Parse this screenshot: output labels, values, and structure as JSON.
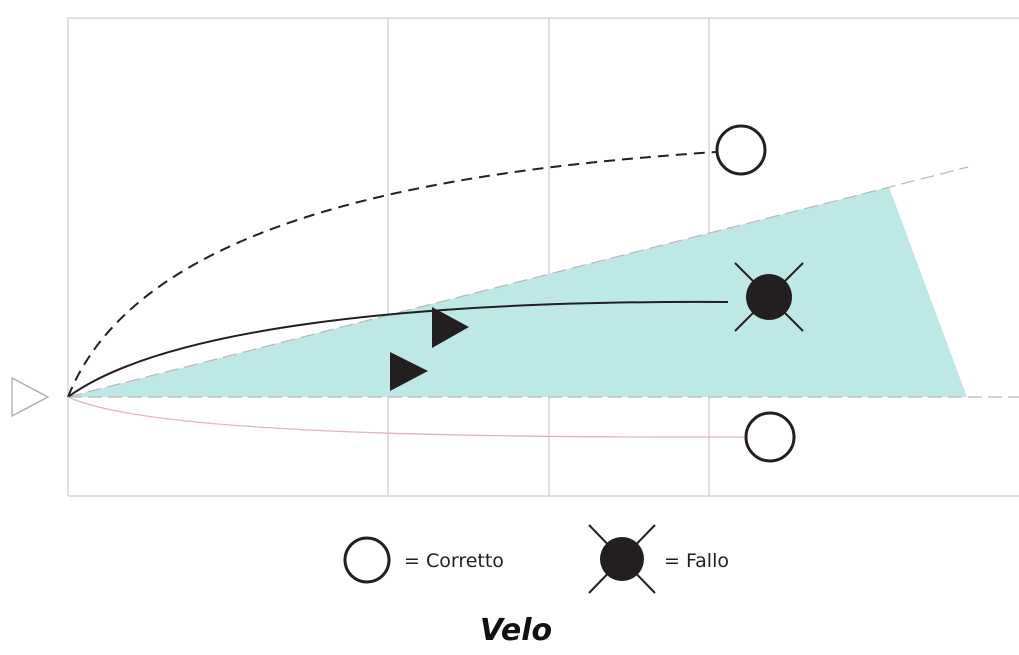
{
  "legend": {
    "correct_label": "= Corretto",
    "foul_label": "= Fallo"
  },
  "caption": "Velo",
  "colors": {
    "screen_fill": "#bde8e6",
    "grid": "#cfcfcf",
    "ink": "#231f20",
    "dashed_light": "#b8b8b8",
    "low_path": "#e0b8b8",
    "origin_marker": "#aaaaaa"
  },
  "icons": {
    "correct": "hollow-circle-icon",
    "foul": "crossed-filled-circle-icon",
    "defender": "triangle-marker-icon",
    "origin": "origin-triangle-icon"
  }
}
